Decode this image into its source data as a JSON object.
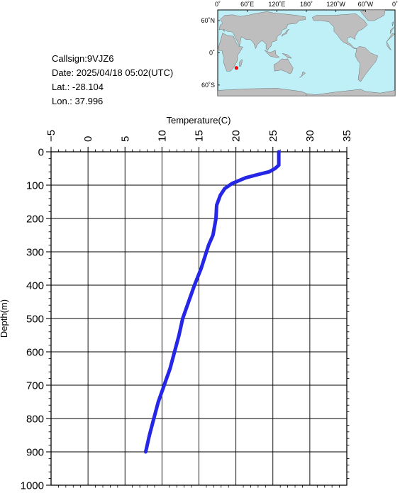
{
  "station": {
    "callsign_line": "Callsign:9VJZ6",
    "date_line": "Date:  2025/04/18 05:02(UTC)",
    "lat_line": "Lat.:  -28.104",
    "lon_line": "Lon.:   37.996"
  },
  "map": {
    "lon_labels": [
      "0˚",
      "60˚E",
      "120˚E",
      "180˚",
      "120˚W",
      "60˚W",
      "0˚"
    ],
    "lat_labels": [
      "60˚N",
      "0˚",
      "60˚S"
    ],
    "marker": {
      "lat": -28.104,
      "lon": 37.996,
      "color": "#ff0000"
    },
    "ocean_color": "#bff0f8",
    "land_color": "#bebebe"
  },
  "chart_data": {
    "type": "line",
    "xlabel": "Temperature(C)",
    "ylabel": "Depth(m)",
    "xlim": [
      -5,
      35
    ],
    "ylim": [
      1000,
      0
    ],
    "x_ticks": [
      -5,
      0,
      5,
      10,
      15,
      20,
      25,
      30,
      35
    ],
    "y_ticks": [
      0,
      100,
      200,
      300,
      400,
      500,
      600,
      700,
      800,
      900,
      1000
    ],
    "grid": true,
    "line_color": "#2626e6",
    "series": [
      {
        "points": [
          [
            25.8,
            0
          ],
          [
            25.8,
            40
          ],
          [
            25.3,
            50
          ],
          [
            24.5,
            60
          ],
          [
            23.0,
            68
          ],
          [
            21.3,
            78
          ],
          [
            19.5,
            95
          ],
          [
            18.5,
            110
          ],
          [
            17.9,
            130
          ],
          [
            17.4,
            160
          ],
          [
            17.3,
            200
          ],
          [
            16.9,
            250
          ],
          [
            16.3,
            280
          ],
          [
            15.3,
            350
          ],
          [
            14.4,
            400
          ],
          [
            13.6,
            450
          ],
          [
            12.8,
            500
          ],
          [
            12.3,
            550
          ],
          [
            11.7,
            600
          ],
          [
            11.1,
            650
          ],
          [
            10.3,
            700
          ],
          [
            9.5,
            750
          ],
          [
            8.9,
            800
          ],
          [
            8.3,
            850
          ],
          [
            7.8,
            900
          ]
        ]
      }
    ]
  }
}
